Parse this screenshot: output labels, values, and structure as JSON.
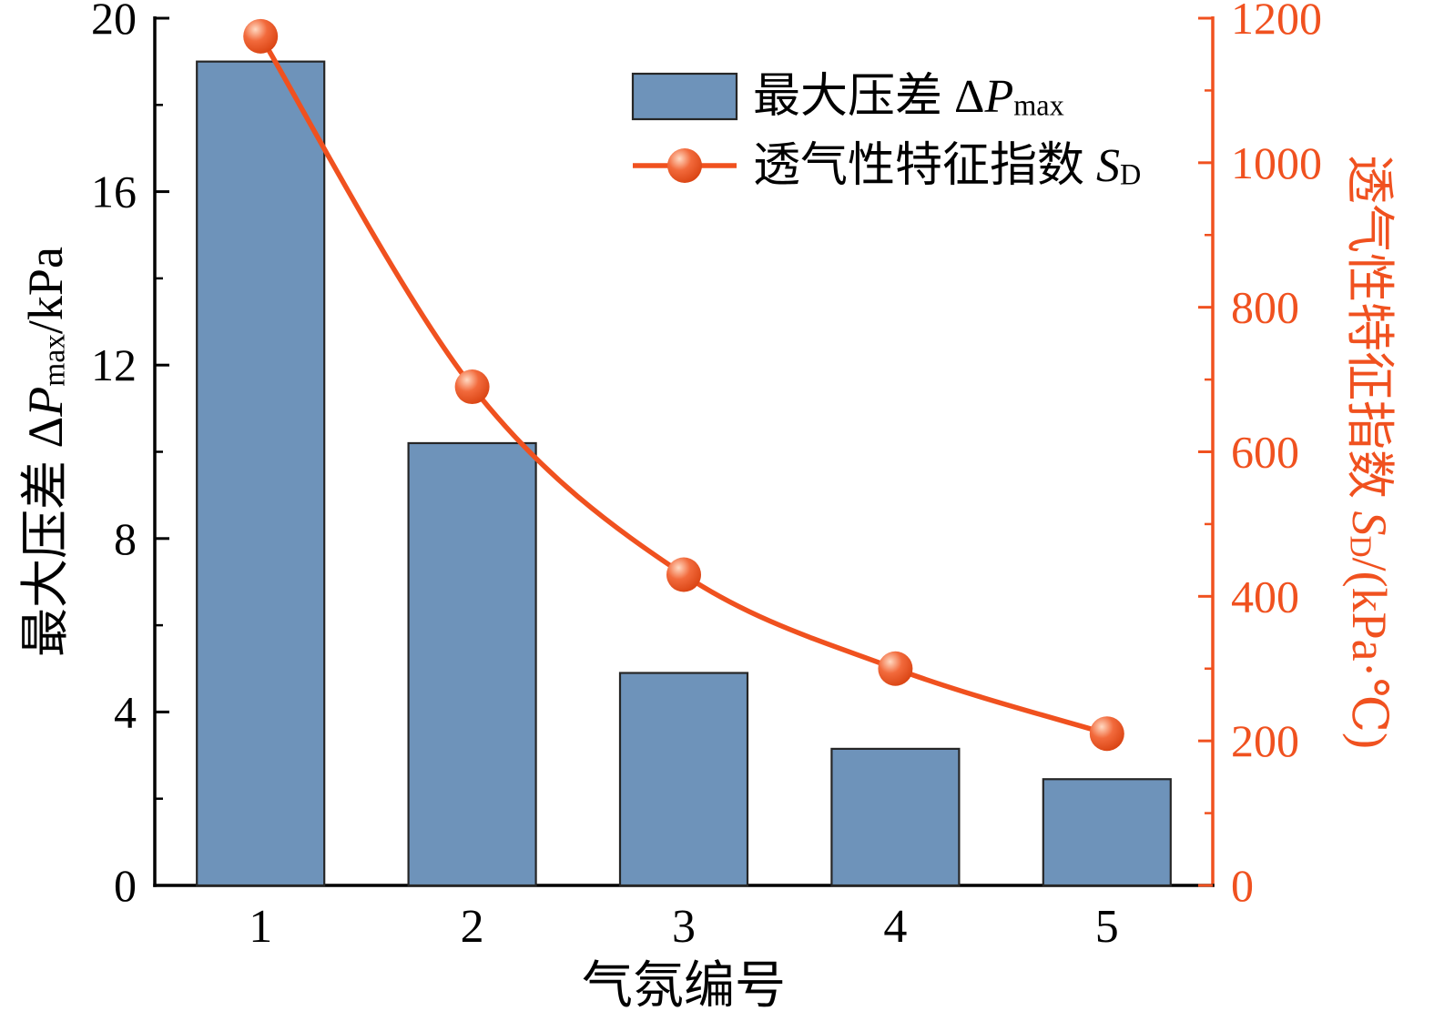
{
  "figure": {
    "background": "#ffffff"
  },
  "chart_data": {
    "type": "bar+line",
    "categories": [
      "1",
      "2",
      "3",
      "4",
      "5"
    ],
    "xlabel": "气氛编号",
    "grid": false,
    "legend_position": "top-center",
    "left_axis": {
      "label": "最大压差 ΔPmax/kPa",
      "label_parts": {
        "prefix": "最大压差 Δ",
        "italic": "P",
        "sub": "max",
        "suffix": "/kPa"
      },
      "lim": [
        0,
        20
      ],
      "ticks": [
        0,
        4,
        8,
        12,
        16,
        20
      ],
      "minor_step": 2,
      "color": "#000000"
    },
    "right_axis": {
      "label": "透气性特征指数 SD/(kPa·℃)",
      "label_parts": {
        "prefix": "透气性特征指数 ",
        "italic": "S",
        "sub": "D",
        "suffix": "/(kPa·℃)"
      },
      "lim": [
        0,
        1200
      ],
      "ticks": [
        0,
        200,
        400,
        600,
        800,
        1000,
        1200
      ],
      "minor_step": 100,
      "color": "#f0511f"
    },
    "series": [
      {
        "id": "max-pressure-bars",
        "type": "bar",
        "axis": "left",
        "legend_label": "最大压差 ΔPmax",
        "legend_parts": {
          "prefix": "最大压差 Δ",
          "italic": "P",
          "sub": "max",
          "suffix": ""
        },
        "values": [
          19.0,
          10.2,
          4.9,
          3.15,
          2.45
        ],
        "fill": "#6e93ba",
        "edge": "#262626"
      },
      {
        "id": "permeability-index-line",
        "type": "line",
        "axis": "right",
        "legend_label": "透气性特征指数 SD",
        "legend_parts": {
          "prefix": "透气性特征指数 ",
          "italic": "S",
          "sub": "D",
          "suffix": ""
        },
        "values": [
          1175,
          690,
          430,
          300,
          210
        ],
        "color": "#f0511f",
        "marker": "sphere"
      }
    ]
  }
}
